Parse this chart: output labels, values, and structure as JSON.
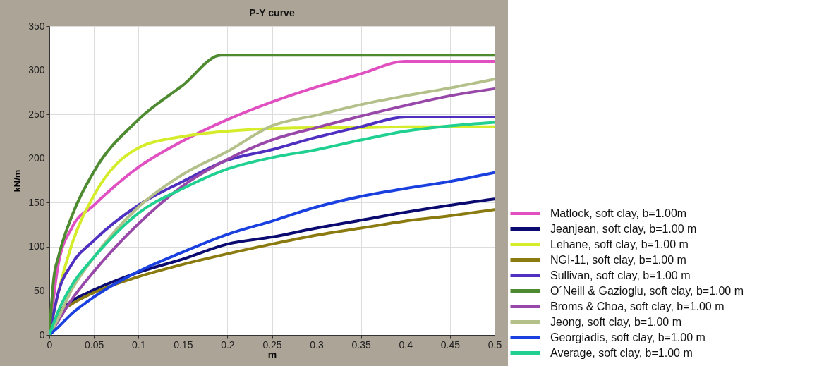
{
  "chart_data": {
    "type": "line",
    "title": "P-Y curve",
    "xlabel": "m",
    "ylabel": "kN/m",
    "x": [
      0,
      0.01,
      0.025,
      0.05,
      0.1,
      0.15,
      0.2,
      0.25,
      0.3,
      0.35,
      0.4,
      0.45,
      0.5
    ],
    "series": [
      {
        "name": "Matlock, soft clay, b=1.00m",
        "color": "#e050c0",
        "values": [
          0,
          80,
          121,
          147,
          190,
          220,
          244,
          264,
          281,
          296,
          310,
          310,
          310
        ]
      },
      {
        "name": "Jeanjean, soft clay, b=1.00 m",
        "color": "#0a0a70",
        "values": [
          0,
          24,
          38,
          51,
          71,
          86,
          103,
          111,
          121,
          130,
          139,
          147,
          154
        ]
      },
      {
        "name": "Lehane, soft clay, b=1.00 m",
        "color": "#d4ec2a",
        "values": [
          0,
          48,
          102,
          158,
          212,
          225,
          231,
          234,
          235,
          235,
          236,
          236,
          236
        ]
      },
      {
        "name": "NGI-11, soft clay, b=1.00 m",
        "color": "#8a7a10",
        "values": [
          0,
          24,
          35,
          48,
          66,
          80,
          92,
          103,
          113,
          121,
          129,
          135,
          142
        ]
      },
      {
        "name": "Sullivan, soft clay, b=1.00 m",
        "color": "#5030c0",
        "values": [
          0,
          48,
          80,
          107,
          147,
          174,
          198,
          210,
          224,
          236,
          247,
          247,
          247
        ]
      },
      {
        "name": "O´Neill & Gazioglu, soft clay, b=1.00 m",
        "color": "#4e8a30",
        "x": [
          0,
          0.005,
          0.01,
          0.025,
          0.05,
          0.1,
          0.15,
          0.193,
          0.25,
          0.3,
          0.35,
          0.4,
          0.45,
          0.5
        ],
        "values": [
          0,
          65,
          88,
          134,
          185,
          244,
          283,
          317,
          317,
          317,
          317,
          317,
          317,
          317
        ]
      },
      {
        "name": "Broms & Choa, soft clay, b=1.00 m",
        "color": "#9848a8",
        "values": [
          0,
          16,
          40,
          72,
          126,
          169,
          199,
          221,
          235,
          248,
          260,
          271,
          279
        ]
      },
      {
        "name": "Jeong, soft clay, b=1.00 m",
        "color": "#b4c08a",
        "values": [
          0,
          19,
          51,
          88,
          145,
          182,
          208,
          237,
          249,
          261,
          271,
          280,
          290
        ]
      },
      {
        "name": "Georgiadis, soft clay, b=1.00 m",
        "color": "#1a40e0",
        "values": [
          0,
          9,
          24,
          43,
          72,
          94,
          114,
          129,
          145,
          157,
          166,
          174,
          184
        ]
      },
      {
        "name": "Average, soft clay, b=1.00 m",
        "color": "#20d090",
        "values": [
          0,
          27,
          56,
          88,
          138,
          166,
          188,
          201,
          210,
          221,
          231,
          237,
          241
        ]
      }
    ],
    "xlim": [
      0,
      0.5
    ],
    "xticks": [
      0,
      0.05,
      0.1,
      0.15,
      0.2,
      0.25,
      0.3,
      0.35,
      0.4,
      0.45,
      0.5
    ],
    "ylim": [
      0,
      350
    ],
    "yticks": [
      0,
      50,
      100,
      150,
      200,
      250,
      300,
      350
    ],
    "grid": true,
    "legend": "right",
    "line_style": "solid",
    "marker": "none"
  }
}
